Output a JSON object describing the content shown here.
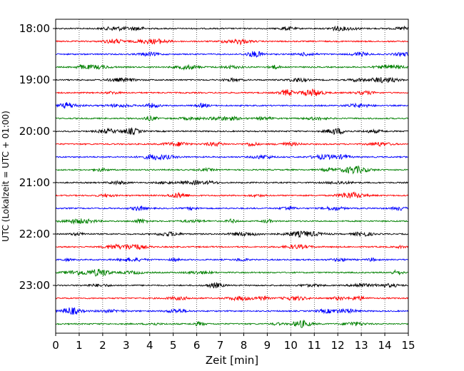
{
  "chart_data": {
    "type": "line",
    "subtype": "helicorder",
    "title": "",
    "xlabel": "Zeit  [min]",
    "ylabel": "UTC (Lokalzeit = UTC + 01:00)",
    "xlim": [
      0,
      15
    ],
    "x_ticks": [
      "0",
      "1",
      "2",
      "3",
      "4",
      "5",
      "6",
      "7",
      "8",
      "9",
      "10",
      "11",
      "12",
      "13",
      "14",
      "15"
    ],
    "y_tick_labels": [
      "18:00",
      "19:00",
      "20:00",
      "21:00",
      "22:00",
      "23:00"
    ],
    "trace_start_hour": 18,
    "trace_count": 24,
    "minutes_per_trace": 15,
    "traces_per_label": 4,
    "trace_colors": [
      "#000000",
      "#ff0000",
      "#0000ff",
      "#008000"
    ],
    "vertical_grid": true,
    "grid_style": "dotted"
  }
}
